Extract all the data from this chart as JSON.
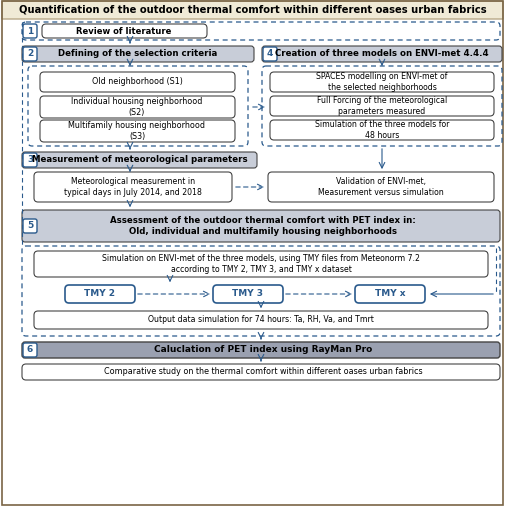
{
  "title": "Quantification of the outdoor thermal comfort within different oases urban fabrics",
  "title_bg": "#f0ead6",
  "bg_color": "#ffffff",
  "step_color": "#2a5a8c",
  "box_gray_bg": "#c8cdd8",
  "box_white_bg": "#ffffff",
  "dashed_color": "#2a5a8c",
  "arrow_color": "#2a5a8c",
  "dark_gray_bg": "#9aa0b0",
  "step1_text": "Review of literature",
  "step2_text": "Defining of the selection criteria",
  "step3_text": "Measurement of meteorological parameters",
  "step4_text": "Creation of three models on ENVI-met 4.4.4",
  "step5_text": "Assessment of the outdoor thermal comfort with PET index in:\nOld, individual and multifamily housing neighborhoods",
  "step6_text": "Caluclation of PET index using RayMan Pro",
  "s1_text": "Old neighborhood (S1)",
  "s2_text": "Individual housing neighborhood\n(S2)",
  "s3_text": "Multifamily housing neighborhood\n(S3)",
  "meteo_text": "Meteorological measurement in\ntypical days in July 2014, and 2018",
  "spaces_text": "SPACES modelling on ENVI-met of\nthe selected neighborhoods",
  "forcing_text": "Full Forcing of the meteorological\nparameters measured",
  "sim48_text": "Simulation of the three models for\n48 hours",
  "validation_text": "Validation of ENVI-met,\nMeasurement versus simulation",
  "sim_text": "Simulation on ENVI-met of the three models, using TMY files from Meteonorm 7.2\naccording to TMY 2, TMY 3, and TMY x dataset",
  "tmy2_text": "TMY 2",
  "tmy3_text": "TMY 3",
  "tmyx_text": "TMY x",
  "output_text": "Output data simulation for 74 hours: Ta, RH, Va, and Tmrt",
  "step6_full_text": "Caluclation of PET index using RayMan Pro",
  "comparative_text": "Comparative study on the thermal comfort within different oases urban fabrics"
}
